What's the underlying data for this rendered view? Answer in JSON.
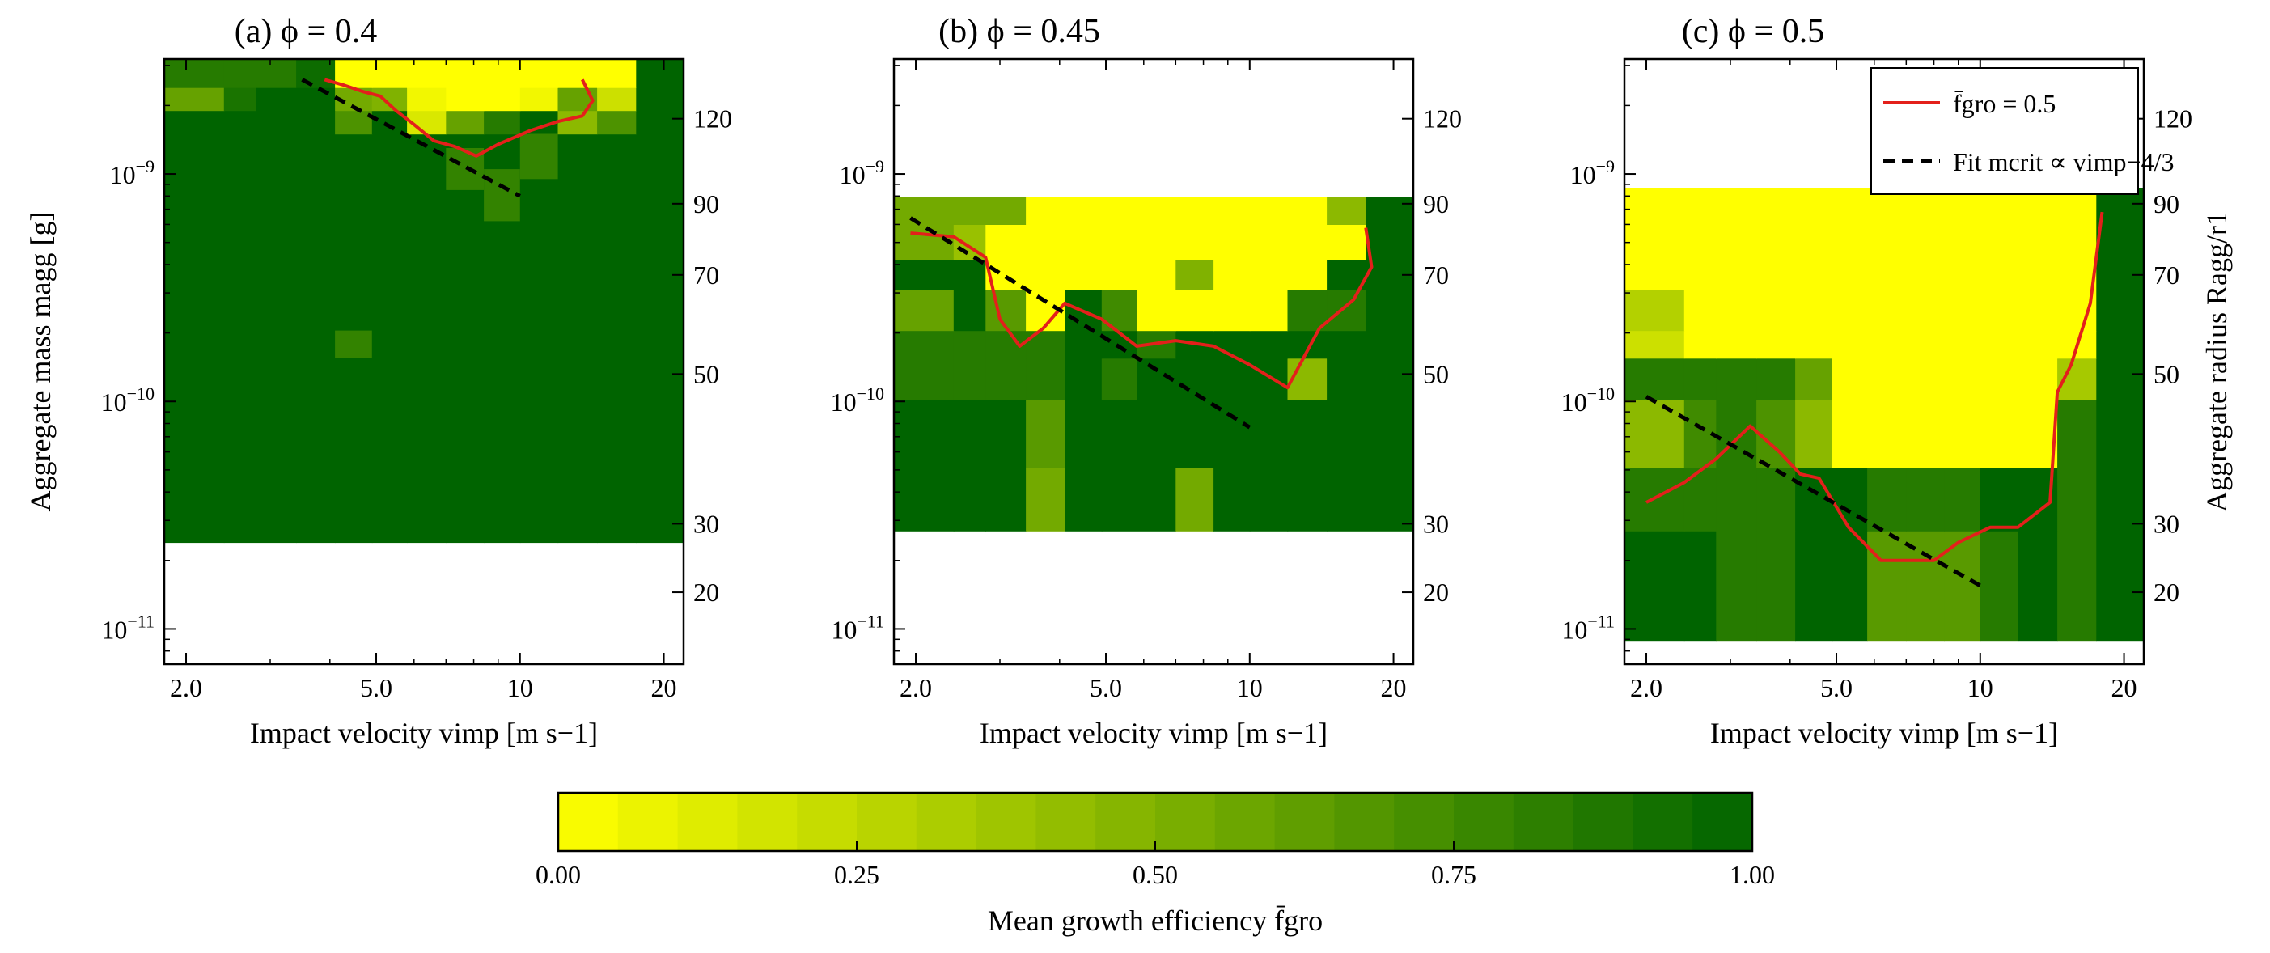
{
  "chart_data": {
    "type": "heatmap",
    "colormap": {
      "from": "#ffff00",
      "to": "#006400",
      "range": [
        0,
        1
      ],
      "ticks": [
        "0.00",
        "0.25",
        "0.50",
        "0.75",
        "1.00"
      ],
      "n_bins": 20,
      "label": "Mean growth efficiency f̄gro"
    },
    "shared": {
      "xlabel": "Impact velocity vimp [m s−1]",
      "ylabel_left": "Aggregate mass magg [g]",
      "ylabel_right": "Aggregate radius Ragg/r1",
      "xscale": "log",
      "yscale": "log",
      "xlim": [
        1.8,
        22
      ],
      "ylim": [
        7e-12,
        3.2e-09
      ],
      "xticks": [
        2,
        5,
        10,
        20
      ],
      "xtick_labels": [
        "2.0",
        "5.0",
        "10",
        "20"
      ],
      "yticks": [
        1e-11,
        1e-10,
        1e-09
      ],
      "ytick_labels": [
        "10−11",
        "10−10",
        "10−9"
      ],
      "x_bin_edges": [
        1.8,
        2.4,
        2.8,
        3.4,
        4.1,
        4.9,
        5.8,
        7.0,
        8.4,
        10.0,
        12.0,
        14.5,
        17.5,
        22.0
      ],
      "right_ticks": [
        20,
        30,
        50,
        70,
        90,
        120
      ],
      "right_tick_mass": [
        1.45e-11,
        2.9e-11,
        1.32e-10,
        3.6e-10,
        7.4e-10,
        1.75e-09
      ],
      "legend": {
        "entries": [
          "f̄gro = 0.5",
          "Fit mcrit ∝ vimp−4/3"
        ],
        "placement": "upper right",
        "colors": [
          "#e3201b",
          "#000000"
        ]
      }
    },
    "panels": [
      {
        "title": "(a) ϕ = 0.4",
        "y_bin_edges": [
          2.4e-11,
          1.5e-09,
          1.9e-09,
          2.4e-09,
          3.2e-09
        ],
        "grid": [
          [
            1,
            1,
            1,
            1,
            1,
            1,
            1,
            1,
            1,
            1,
            1,
            1,
            1
          ],
          [
            1,
            1,
            1,
            1,
            0.7,
            1,
            0.15,
            0.6,
            0.85,
            1,
            0.45,
            0.7,
            1
          ],
          [
            0.6,
            0.9,
            1,
            1,
            0.55,
            0.5,
            0.05,
            0,
            0,
            0.05,
            0.6,
            0.2,
            1
          ],
          [
            0.85,
            0.85,
            0.85,
            0.95,
            0,
            0,
            0,
            0,
            0,
            0,
            0,
            0,
            1
          ]
        ],
        "patches": [
          {
            "x0": 4.1,
            "x1": 4.9,
            "y0": 1.55e-10,
            "y1": 2.05e-10,
            "value": 0.8
          },
          {
            "x0": 7.0,
            "x1": 8.4,
            "y0": 8.5e-10,
            "y1": 1.3e-09,
            "value": 0.8
          },
          {
            "x0": 8.4,
            "x1": 10.0,
            "y0": 6.2e-10,
            "y1": 1.05e-09,
            "value": 0.8
          },
          {
            "x0": 10.0,
            "x1": 12.0,
            "y0": 9.5e-10,
            "y1": 1.5e-09,
            "value": 0.8
          }
        ],
        "contour": {
          "x": [
            3.9,
            4.3,
            4.7,
            5.1,
            5.5,
            6.0,
            6.6,
            7.3,
            8.1,
            9.0,
            10.5,
            12.0,
            13.5,
            14.2,
            13.5
          ],
          "y": [
            2.6e-09,
            2.45e-09,
            2.3e-09,
            2.2e-09,
            1.9e-09,
            1.65e-09,
            1.4e-09,
            1.32e-09,
            1.2e-09,
            1.35e-09,
            1.55e-09,
            1.7e-09,
            1.8e-09,
            2.1e-09,
            2.6e-09
          ]
        },
        "fit": {
          "x": [
            3.5,
            10.0
          ],
          "y": [
            2.6e-09,
            8e-10
          ]
        }
      },
      {
        "title": "(b) ϕ = 0.45",
        "y_bin_edges": [
          2.7e-11,
          5.1e-11,
          1.02e-10,
          1.55e-10,
          2.05e-10,
          3.1e-10,
          4.2e-10,
          6e-10,
          7.9e-10
        ],
        "grid": [
          [
            1,
            1,
            1,
            0.55,
            1,
            1,
            1,
            0.55,
            1,
            1,
            1,
            1,
            1
          ],
          [
            1,
            1,
            1,
            0.65,
            1,
            1,
            1,
            1,
            1,
            1,
            1,
            1,
            1
          ],
          [
            0.85,
            0.85,
            0.85,
            0.85,
            1,
            0.85,
            1,
            1,
            1,
            1,
            0.45,
            1,
            1
          ],
          [
            0.85,
            0.85,
            0.85,
            0.85,
            1,
            1,
            0.85,
            1,
            1,
            1,
            1,
            1,
            1
          ],
          [
            0.6,
            1,
            0.65,
            0,
            1,
            0.75,
            0,
            0,
            0,
            0,
            0.85,
            0.85,
            1
          ],
          [
            1,
            1,
            0,
            0,
            0,
            0,
            0,
            0.5,
            0,
            0,
            0,
            1,
            1
          ],
          [
            0.55,
            0.4,
            0,
            0,
            0,
            0,
            0,
            0,
            0,
            0,
            0,
            0,
            1
          ],
          [
            0.55,
            0.55,
            0.55,
            0,
            0,
            0,
            0,
            0,
            0,
            0,
            0,
            0.45,
            1
          ]
        ],
        "contour": {
          "x": [
            1.95,
            2.4,
            2.8,
            3.0,
            3.3,
            3.7,
            4.1,
            4.9,
            5.8,
            7.0,
            8.4,
            10.0,
            12.0,
            14.0,
            16.5,
            18.0,
            17.5
          ],
          "y": [
            5.5e-10,
            5.3e-10,
            4.3e-10,
            2.3e-10,
            1.75e-10,
            2.1e-10,
            2.7e-10,
            2.3e-10,
            1.75e-10,
            1.85e-10,
            1.75e-10,
            1.45e-10,
            1.15e-10,
            2.1e-10,
            2.8e-10,
            3.9e-10,
            5.8e-10
          ]
        },
        "fit": {
          "x": [
            1.95,
            10.0
          ],
          "y": [
            6.4e-10,
            7.7e-11
          ]
        }
      },
      {
        "title": "(c) ϕ = 0.5",
        "y_bin_edges": [
          8.9e-12,
          2.7e-11,
          5.1e-11,
          1.02e-10,
          1.55e-10,
          2.05e-10,
          3.1e-10,
          4.2e-10,
          8.7e-10
        ],
        "grid": [
          [
            1,
            1,
            0.85,
            0.85,
            1,
            1,
            0.65,
            0.65,
            0.65,
            0.85,
            1,
            0.85,
            1
          ],
          [
            0.85,
            0.85,
            0.85,
            0.85,
            1,
            1,
            0.85,
            0.85,
            0.85,
            1,
            1,
            0.85,
            1
          ],
          [
            0.45,
            0.75,
            0.85,
            0.7,
            0.45,
            0,
            0,
            0,
            0,
            0,
            0,
            0.85,
            1
          ],
          [
            0.85,
            0.85,
            0.85,
            0.85,
            0.6,
            0,
            0,
            0,
            0,
            0,
            0,
            0.35,
            1
          ],
          [
            0.2,
            0,
            0,
            0,
            0,
            0,
            0,
            0,
            0,
            0,
            0,
            0,
            1
          ],
          [
            0.3,
            0,
            0,
            0,
            0,
            0,
            0,
            0,
            0,
            0,
            0,
            0,
            1
          ],
          [
            0,
            0,
            0,
            0,
            0,
            0,
            0,
            0,
            0,
            0,
            0,
            0,
            1
          ],
          [
            0,
            0,
            0,
            0,
            0,
            0,
            0,
            0,
            0,
            0,
            0,
            0,
            1
          ]
        ],
        "contour": {
          "x": [
            2.0,
            2.4,
            2.8,
            3.3,
            3.8,
            4.2,
            4.6,
            5.3,
            6.2,
            7.0,
            8.0,
            9.0,
            10.5,
            12.0,
            14.0,
            14.5,
            15.5,
            17.0,
            18.0
          ],
          "y": [
            3.6e-11,
            4.4e-11,
            5.6e-11,
            7.8e-11,
            6e-11,
            4.8e-11,
            4.6e-11,
            2.8e-11,
            2e-11,
            2e-11,
            2e-11,
            2.4e-11,
            2.8e-11,
            2.8e-11,
            3.6e-11,
            1.1e-10,
            1.45e-10,
            2.7e-10,
            6.8e-10
          ]
        },
        "fit": {
          "x": [
            2.0,
            10.0
          ],
          "y": [
            1.05e-10,
            1.55e-11
          ]
        }
      }
    ]
  }
}
